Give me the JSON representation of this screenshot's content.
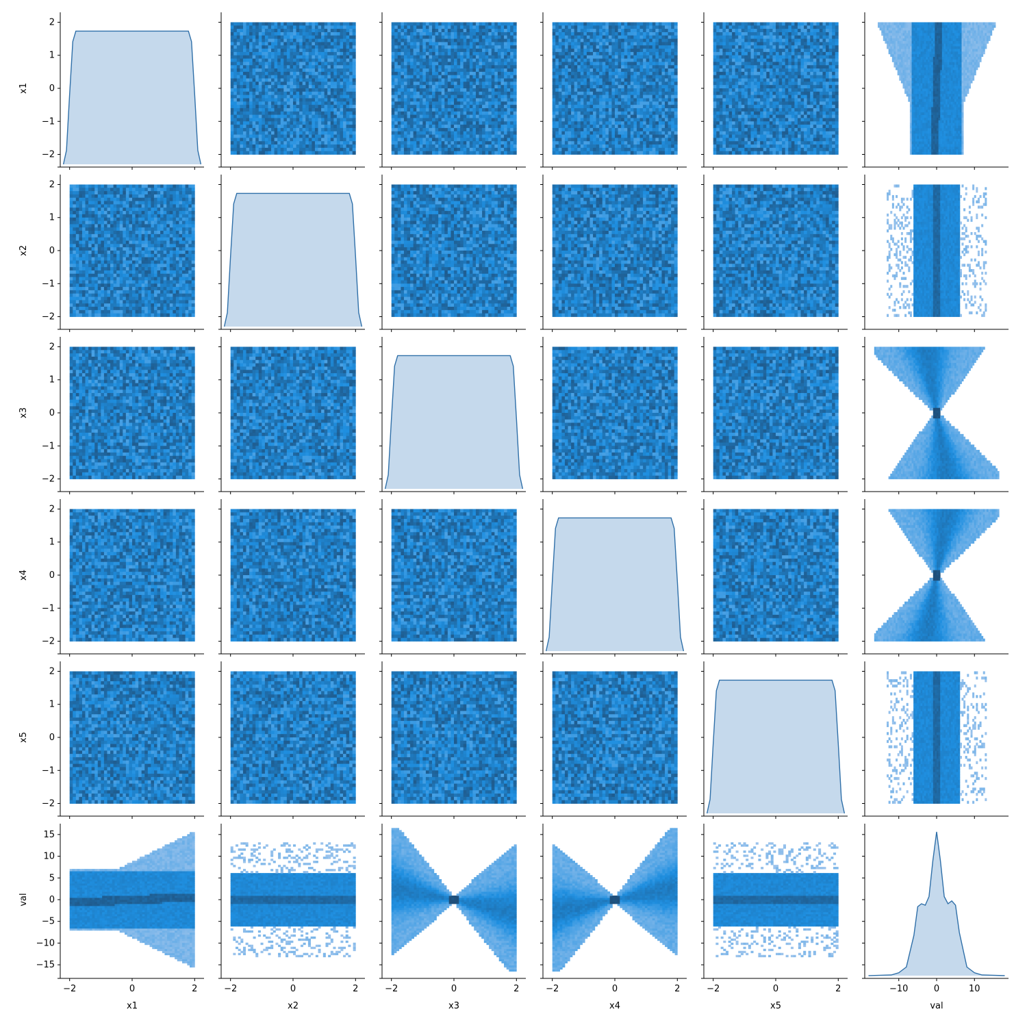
{
  "chart_data": {
    "type": "pairplot",
    "variables": [
      "x1",
      "x2",
      "x3",
      "x4",
      "x5",
      "val"
    ],
    "diagonal": "kde",
    "off_diagonal": "hist2d",
    "colors": {
      "kde_line": "#2f6fa8",
      "kde_fill": "#c5d9ec",
      "hist_dense": "#1f4f7a",
      "hist_mid": "#1f8fe0",
      "hist_light": "#aecbee"
    },
    "ranges": {
      "x": [
        -2,
        2
      ],
      "val": [
        -16.5,
        16.5
      ]
    },
    "ticks": {
      "x": [
        -2,
        -1,
        0,
        1,
        2
      ],
      "x_bottom": [
        -2,
        0,
        2
      ],
      "val_y": [
        -15,
        -10,
        -5,
        0,
        5,
        10,
        15
      ],
      "val_x": [
        -10,
        0,
        10
      ]
    },
    "tick_labels": {
      "x": [
        "−2",
        "−1",
        "0",
        "1",
        "2"
      ],
      "x_bottom": [
        "−2",
        "0",
        "2"
      ],
      "val_y": [
        "−15",
        "−10",
        "−5",
        "0",
        "5",
        "10",
        "15"
      ],
      "val_x": [
        "−10",
        "0",
        "10"
      ]
    },
    "x_kde": {
      "x": [
        -2.2,
        -2.1,
        -2.0,
        -1.9,
        -1.8,
        -1.6,
        -1.2,
        -0.8,
        -0.4,
        0.0,
        0.4,
        0.8,
        1.2,
        1.6,
        1.8,
        1.9,
        2.0,
        2.1,
        2.2
      ],
      "y": [
        0.0,
        0.2,
        1.0,
        1.75,
        1.9,
        1.9,
        1.9,
        1.9,
        1.9,
        1.9,
        1.9,
        1.9,
        1.9,
        1.9,
        1.9,
        1.75,
        1.0,
        0.2,
        0.0
      ]
    },
    "val_kde": {
      "x": [
        -18,
        -12,
        -10,
        -8,
        -6,
        -5,
        -4,
        -3,
        -2,
        -1,
        0,
        1,
        2,
        3,
        4,
        5,
        6,
        8,
        10,
        12,
        18
      ],
      "density": [
        0.0,
        0.005,
        0.02,
        0.06,
        0.28,
        0.48,
        0.5,
        0.49,
        0.55,
        0.8,
        1.0,
        0.8,
        0.55,
        0.5,
        0.52,
        0.49,
        0.3,
        0.06,
        0.02,
        0.005,
        0.0
      ]
    },
    "val_vs_x_patterns": {
      "x1": "band widening toward x1 = 2, dense core near 0",
      "x2": "uniform band from -6 to 6 with sparse tails",
      "x3": "hourglass pinched at x3 = 0",
      "x4": "hourglass pinched at x4 = 0",
      "x5": "uniform band from -6 to 6 with sparse tails"
    }
  }
}
